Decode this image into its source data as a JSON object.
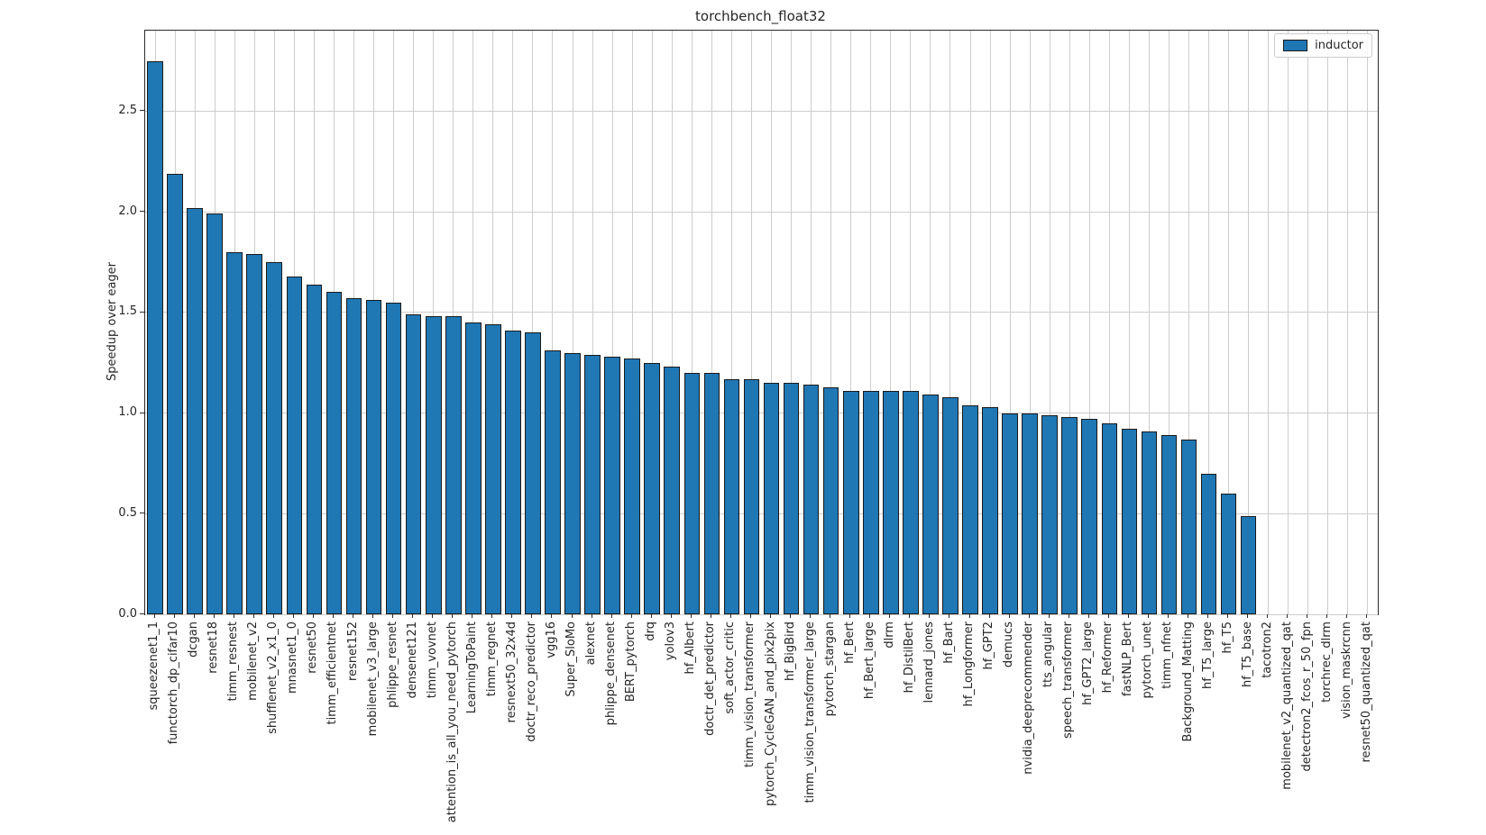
{
  "chart_data": {
    "type": "bar",
    "title": "torchbench_float32",
    "xlabel": "",
    "ylabel": "Speedup over eager",
    "legend": [
      "inductor"
    ],
    "legend_position": "upper right",
    "grid": true,
    "ylim": [
      0,
      2.9
    ],
    "yticks": [
      0.0,
      0.5,
      1.0,
      1.5,
      2.0,
      2.5
    ],
    "ytick_labels": [
      "0.0",
      "0.5",
      "1.0",
      "1.5",
      "2.0",
      "2.5"
    ],
    "bar_color": "#1f77b4",
    "bar_edge_color": "#1a1a1a",
    "categories": [
      "squeezenet1_1",
      "functorch_dp_cifar10",
      "dcgan",
      "resnet18",
      "timm_resnest",
      "mobilenet_v2",
      "shufflenet_v2_x1_0",
      "mnasnet1_0",
      "resnet50",
      "timm_efficientnet",
      "resnet152",
      "mobilenet_v3_large",
      "phlippe_resnet",
      "densenet121",
      "timm_vovnet",
      "attention_is_all_you_need_pytorch",
      "LearningToPaint",
      "timm_regnet",
      "resnext50_32x4d",
      "doctr_reco_predictor",
      "vgg16",
      "Super_SloMo",
      "alexnet",
      "phlippe_densenet",
      "BERT_pytorch",
      "drq",
      "yolov3",
      "hf_Albert",
      "doctr_det_predictor",
      "soft_actor_critic",
      "timm_vision_transformer",
      "pytorch_CycleGAN_and_pix2pix",
      "hf_BigBird",
      "timm_vision_transformer_large",
      "pytorch_stargan",
      "hf_Bert",
      "hf_Bert_large",
      "dlrm",
      "hf_DistilBert",
      "lennard_jones",
      "hf_Bart",
      "hf_Longformer",
      "hf_GPT2",
      "demucs",
      "nvidia_deeprecommender",
      "tts_angular",
      "speech_transformer",
      "hf_GPT2_large",
      "hf_Reformer",
      "fastNLP_Bert",
      "pytorch_unet",
      "timm_nfnet",
      "Background_Matting",
      "hf_T5_large",
      "hf_T5",
      "hf_T5_base",
      "tacotron2",
      "mobilenet_v2_quantized_qat",
      "detectron2_fcos_r_50_fpn",
      "torchrec_dlrm",
      "vision_maskrcnn",
      "resnet50_quantized_qat"
    ],
    "values": [
      2.75,
      2.19,
      2.02,
      1.99,
      1.8,
      1.79,
      1.75,
      1.68,
      1.64,
      1.6,
      1.57,
      1.56,
      1.55,
      1.49,
      1.48,
      1.48,
      1.45,
      1.44,
      1.41,
      1.4,
      1.31,
      1.3,
      1.29,
      1.28,
      1.27,
      1.25,
      1.23,
      1.2,
      1.2,
      1.17,
      1.17,
      1.15,
      1.15,
      1.14,
      1.13,
      1.11,
      1.11,
      1.11,
      1.11,
      1.09,
      1.08,
      1.04,
      1.03,
      1.0,
      1.0,
      0.99,
      0.98,
      0.97,
      0.95,
      0.92,
      0.91,
      0.89,
      0.87,
      0.7,
      0.6,
      0.49,
      0,
      0,
      0,
      0,
      0,
      0
    ]
  }
}
